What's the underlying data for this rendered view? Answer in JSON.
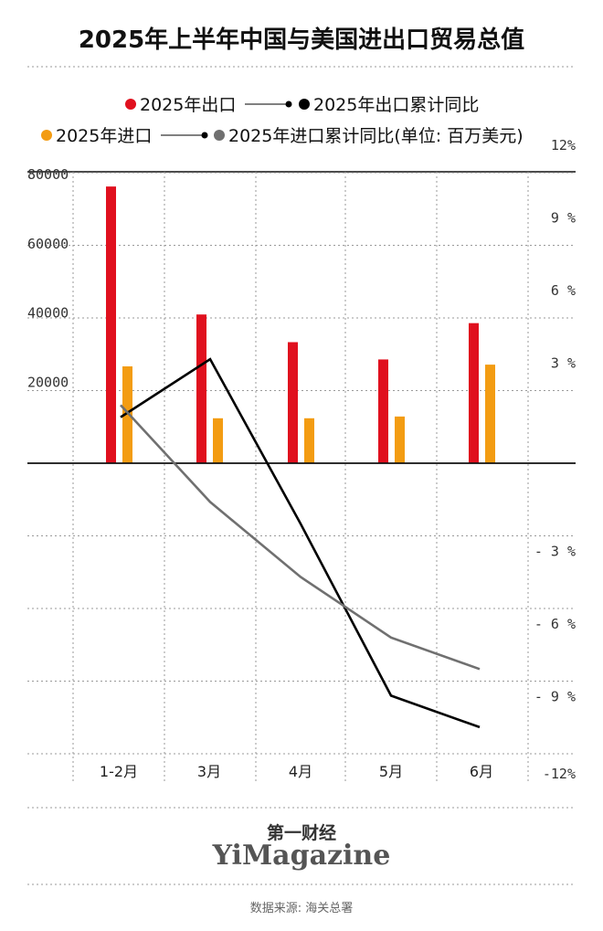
{
  "title": "2025年上半年中国与美国进出口贸易总值",
  "legend": [
    {
      "label": "2025年出口",
      "color": "#e0101e",
      "kind": "bar"
    },
    {
      "label": "2025年出口累计同比",
      "color": "#000000",
      "kind": "line"
    },
    {
      "label": "2025年进口",
      "color": "#f39c12",
      "kind": "bar"
    },
    {
      "label": "2025年进口累计同比",
      "color": "#707070",
      "kind": "line"
    }
  ],
  "unit_note": "(单位: 百万美元)",
  "chart_data": {
    "type": "bar",
    "categories": [
      "1-2月",
      "3月",
      "4月",
      "5月",
      "6月"
    ],
    "series": [
      {
        "name": "2025年出口",
        "type": "bar",
        "axis": "left",
        "color": "#e0101e",
        "values": [
          80000,
          43000,
          35000,
          30000,
          40500
        ]
      },
      {
        "name": "2025年进口",
        "type": "bar",
        "axis": "left",
        "color": "#f39c12",
        "values": [
          28000,
          13000,
          13000,
          13500,
          28500
        ]
      },
      {
        "name": "2025年出口累计同比",
        "type": "line",
        "axis": "right",
        "color": "#000000",
        "values": [
          1.9,
          4.3,
          -2.5,
          -9.6,
          -10.9
        ]
      },
      {
        "name": "2025年进口累计同比",
        "type": "line",
        "axis": "right",
        "color": "#707070",
        "values": [
          2.4,
          -1.6,
          -4.7,
          -7.2,
          -8.5
        ]
      }
    ],
    "left_axis": {
      "ticks": [
        "20000",
        "40000",
        "60000",
        "80000"
      ],
      "tick_values": [
        20000,
        40000,
        60000,
        80000
      ],
      "range": [
        -84000,
        84000
      ]
    },
    "right_axis": {
      "ticks": [
        "12%",
        "9 %",
        "6 %",
        "3 %",
        "- 3 %",
        "- 6 %",
        "- 9 %",
        "-12%"
      ],
      "tick_values": [
        12,
        9,
        6,
        3,
        -3,
        -6,
        -9,
        -12
      ],
      "range": [
        -12,
        12
      ]
    },
    "grid": true
  },
  "logo": {
    "cn": "第一财经",
    "en": "YiMagazine"
  },
  "source": "数据来源: 海关总署"
}
